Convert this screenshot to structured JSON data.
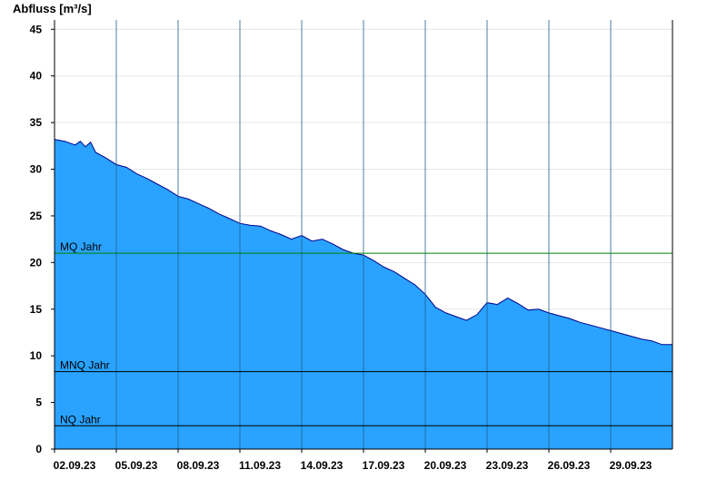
{
  "chart_data": {
    "type": "area",
    "ylabel": "Abfluss [m³/s]",
    "ylim": [
      0,
      46
    ],
    "yticks": [
      0,
      5,
      10,
      15,
      20,
      25,
      30,
      35,
      40,
      45
    ],
    "xlim": [
      "2023-09-02T00:00",
      "2023-10-02T00:00"
    ],
    "xticks": [
      {
        "date": "2023-09-02",
        "label": "02.09.23"
      },
      {
        "date": "2023-09-05",
        "label": "05.09.23"
      },
      {
        "date": "2023-09-08",
        "label": "08.09.23"
      },
      {
        "date": "2023-09-11",
        "label": "11.09.23"
      },
      {
        "date": "2023-09-14",
        "label": "14.09.23"
      },
      {
        "date": "2023-09-17",
        "label": "17.09.23"
      },
      {
        "date": "2023-09-20",
        "label": "20.09.23"
      },
      {
        "date": "2023-09-23",
        "label": "23.09.23"
      },
      {
        "date": "2023-09-26",
        "label": "26.09.23"
      },
      {
        "date": "2023-09-29",
        "label": "29.09.23"
      }
    ],
    "grid": true,
    "series": [
      {
        "color": "#29a3ff",
        "line_color": "#00008b",
        "points": [
          [
            "2023-09-02T00:00",
            33.2
          ],
          [
            "2023-09-02T12:00",
            33.0
          ],
          [
            "2023-09-03T00:00",
            32.6
          ],
          [
            "2023-09-03T06:00",
            33.0
          ],
          [
            "2023-09-03T12:00",
            32.4
          ],
          [
            "2023-09-03T18:00",
            32.9
          ],
          [
            "2023-09-04T00:00",
            31.8
          ],
          [
            "2023-09-04T12:00",
            31.2
          ],
          [
            "2023-09-05T00:00",
            30.5
          ],
          [
            "2023-09-05T12:00",
            30.2
          ],
          [
            "2023-09-06T00:00",
            29.5
          ],
          [
            "2023-09-06T12:00",
            29.0
          ],
          [
            "2023-09-07T00:00",
            28.4
          ],
          [
            "2023-09-07T12:00",
            27.8
          ],
          [
            "2023-09-08T00:00",
            27.1
          ],
          [
            "2023-09-08T12:00",
            26.8
          ],
          [
            "2023-09-09T00:00",
            26.3
          ],
          [
            "2023-09-09T12:00",
            25.8
          ],
          [
            "2023-09-10T00:00",
            25.2
          ],
          [
            "2023-09-10T12:00",
            24.7
          ],
          [
            "2023-09-11T00:00",
            24.2
          ],
          [
            "2023-09-11T12:00",
            24.0
          ],
          [
            "2023-09-12T00:00",
            23.9
          ],
          [
            "2023-09-12T12:00",
            23.4
          ],
          [
            "2023-09-13T00:00",
            23.0
          ],
          [
            "2023-09-13T12:00",
            22.5
          ],
          [
            "2023-09-14T00:00",
            22.9
          ],
          [
            "2023-09-14T12:00",
            22.3
          ],
          [
            "2023-09-15T00:00",
            22.5
          ],
          [
            "2023-09-15T12:00",
            22.0
          ],
          [
            "2023-09-16T00:00",
            21.4
          ],
          [
            "2023-09-16T12:00",
            21.0
          ],
          [
            "2023-09-17T00:00",
            20.8
          ],
          [
            "2023-09-17T12:00",
            20.2
          ],
          [
            "2023-09-18T00:00",
            19.5
          ],
          [
            "2023-09-18T12:00",
            19.0
          ],
          [
            "2023-09-19T00:00",
            18.3
          ],
          [
            "2023-09-19T12:00",
            17.6
          ],
          [
            "2023-09-20T00:00",
            16.6
          ],
          [
            "2023-09-20T12:00",
            15.2
          ],
          [
            "2023-09-21T00:00",
            14.6
          ],
          [
            "2023-09-21T12:00",
            14.2
          ],
          [
            "2023-09-22T00:00",
            13.8
          ],
          [
            "2023-09-22T12:00",
            14.4
          ],
          [
            "2023-09-23T00:00",
            15.7
          ],
          [
            "2023-09-23T12:00",
            15.5
          ],
          [
            "2023-09-24T00:00",
            16.2
          ],
          [
            "2023-09-24T12:00",
            15.6
          ],
          [
            "2023-09-25T00:00",
            14.9
          ],
          [
            "2023-09-25T12:00",
            15.0
          ],
          [
            "2023-09-26T00:00",
            14.6
          ],
          [
            "2023-09-26T12:00",
            14.3
          ],
          [
            "2023-09-27T00:00",
            14.0
          ],
          [
            "2023-09-27T12:00",
            13.6
          ],
          [
            "2023-09-28T00:00",
            13.3
          ],
          [
            "2023-09-28T12:00",
            13.0
          ],
          [
            "2023-09-29T00:00",
            12.7
          ],
          [
            "2023-09-29T12:00",
            12.4
          ],
          [
            "2023-09-30T00:00",
            12.1
          ],
          [
            "2023-09-30T12:00",
            11.8
          ],
          [
            "2023-10-01T00:00",
            11.6
          ],
          [
            "2023-10-01T12:00",
            11.2
          ],
          [
            "2023-10-02T00:00",
            11.2
          ]
        ]
      }
    ],
    "reference_lines": [
      {
        "label": "MQ Jahr",
        "value": 21.0,
        "color": "#008000"
      },
      {
        "label": "MNQ Jahr",
        "value": 8.3,
        "color": "#000000"
      },
      {
        "label": "NQ Jahr",
        "value": 2.5,
        "color": "#000000"
      }
    ]
  }
}
